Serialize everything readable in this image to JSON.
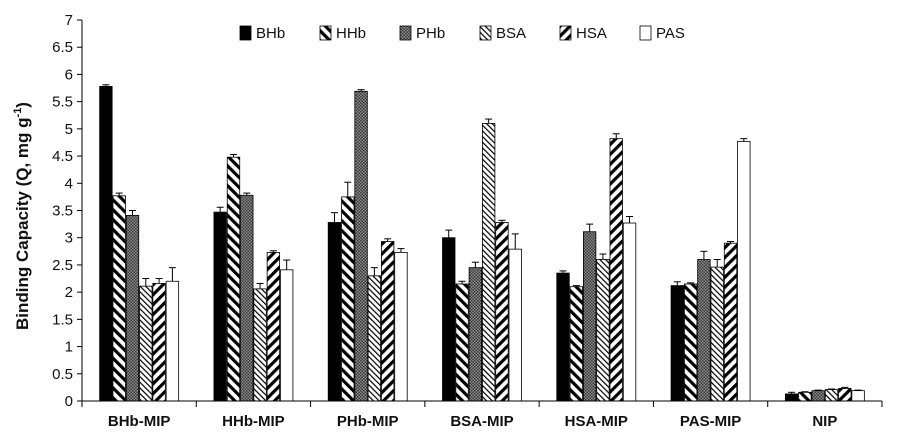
{
  "chart_data": {
    "type": "bar",
    "ylabel_main": "Binding Capacity (Q, mg g",
    "ylabel_sup": "-1",
    "ylabel_close": ")",
    "ylim": [
      0,
      7
    ],
    "yticks": [
      "0",
      "0.5",
      "1",
      "1.5",
      "2",
      "2.5",
      "3",
      "3.5",
      "4",
      "4.5",
      "5",
      "5.5",
      "6",
      "6.5",
      "7"
    ],
    "categories": [
      "BHb-MIP",
      "HHb-MIP",
      "PHb-MIP",
      "BSA-MIP",
      "HSA-MIP",
      "PAS-MIP",
      "NIP"
    ],
    "legend_position": "top",
    "grid": false,
    "series": [
      {
        "name": "BHb",
        "pattern": "solid-black",
        "values": [
          5.78,
          3.47,
          3.28,
          3.0,
          2.35,
          2.12,
          0.13
        ],
        "errors": [
          0.03,
          0.09,
          0.18,
          0.14,
          0.04,
          0.07,
          0.03
        ]
      },
      {
        "name": "HHb",
        "pattern": "diagonal-forward",
        "values": [
          3.77,
          4.48,
          3.75,
          2.15,
          2.1,
          2.15,
          0.16
        ],
        "errors": [
          0.05,
          0.05,
          0.27,
          0.05,
          0.02,
          0.02,
          0.01
        ]
      },
      {
        "name": "PHb",
        "pattern": "dotted-gray",
        "values": [
          3.41,
          3.78,
          5.69,
          2.45,
          3.11,
          2.6,
          0.19
        ],
        "errors": [
          0.09,
          0.04,
          0.03,
          0.1,
          0.14,
          0.15,
          0.01
        ]
      },
      {
        "name": "BSA",
        "pattern": "diagonal-fine",
        "values": [
          2.11,
          2.06,
          2.3,
          5.1,
          2.6,
          2.46,
          0.21
        ],
        "errors": [
          0.14,
          0.1,
          0.15,
          0.08,
          0.1,
          0.14,
          0.01
        ]
      },
      {
        "name": "HSA",
        "pattern": "diagonal-backward",
        "values": [
          2.16,
          2.73,
          2.93,
          3.28,
          4.82,
          2.9,
          0.23
        ],
        "errors": [
          0.09,
          0.03,
          0.05,
          0.04,
          0.09,
          0.03,
          0.02
        ]
      },
      {
        "name": "PAS",
        "pattern": "white",
        "values": [
          2.2,
          2.41,
          2.73,
          2.79,
          3.27,
          4.77,
          0.19
        ],
        "errors": [
          0.25,
          0.18,
          0.07,
          0.28,
          0.12,
          0.05,
          0.01
        ]
      }
    ]
  }
}
